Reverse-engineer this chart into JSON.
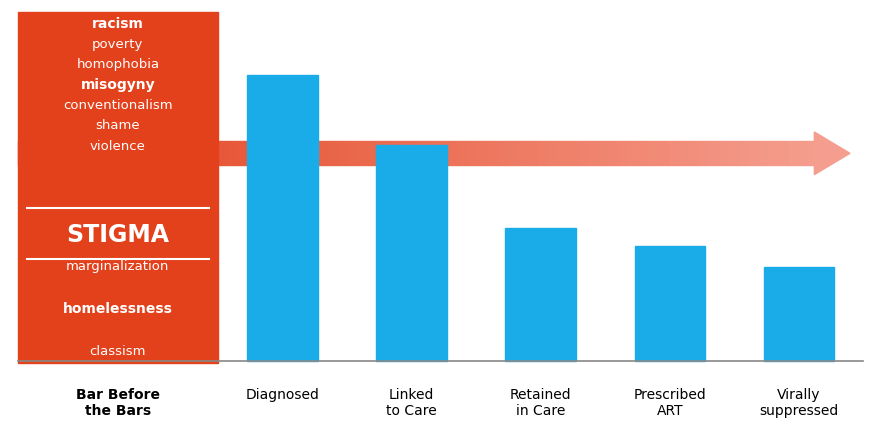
{
  "categories": [
    "Bar Before\nthe Bars",
    "Diagnosed",
    "Linked\nto Care",
    "Retained\nin Care",
    "Prescribed\nART",
    "Virally\nsuppressed"
  ],
  "values": [
    0,
    82,
    62,
    38,
    33,
    27
  ],
  "bar_blue": "#1AACE8",
  "red_box_color": "#E2411C",
  "ylim": [
    0,
    100
  ],
  "background_color": "#ffffff",
  "arrow_color_start": "#E2411C",
  "arrow_color_end": "#F0806A",
  "bar_width": 0.6,
  "red_box_texts": [
    {
      "text": "racism",
      "bold": true
    },
    {
      "text": "poverty",
      "bold": false
    },
    {
      "text": "homophobia",
      "bold": false
    },
    {
      "text": "misogyny",
      "bold": true
    },
    {
      "text": "conventionalism",
      "bold": false
    },
    {
      "text": "shame",
      "bold": false
    },
    {
      "text": "violence",
      "bold": false
    }
  ],
  "stigma_text": "STIGMA",
  "below_texts": [
    {
      "text": "marginalization",
      "bold": false
    },
    {
      "text": "homelessness",
      "bold": true
    },
    {
      "text": "classism",
      "bold": false
    }
  ]
}
